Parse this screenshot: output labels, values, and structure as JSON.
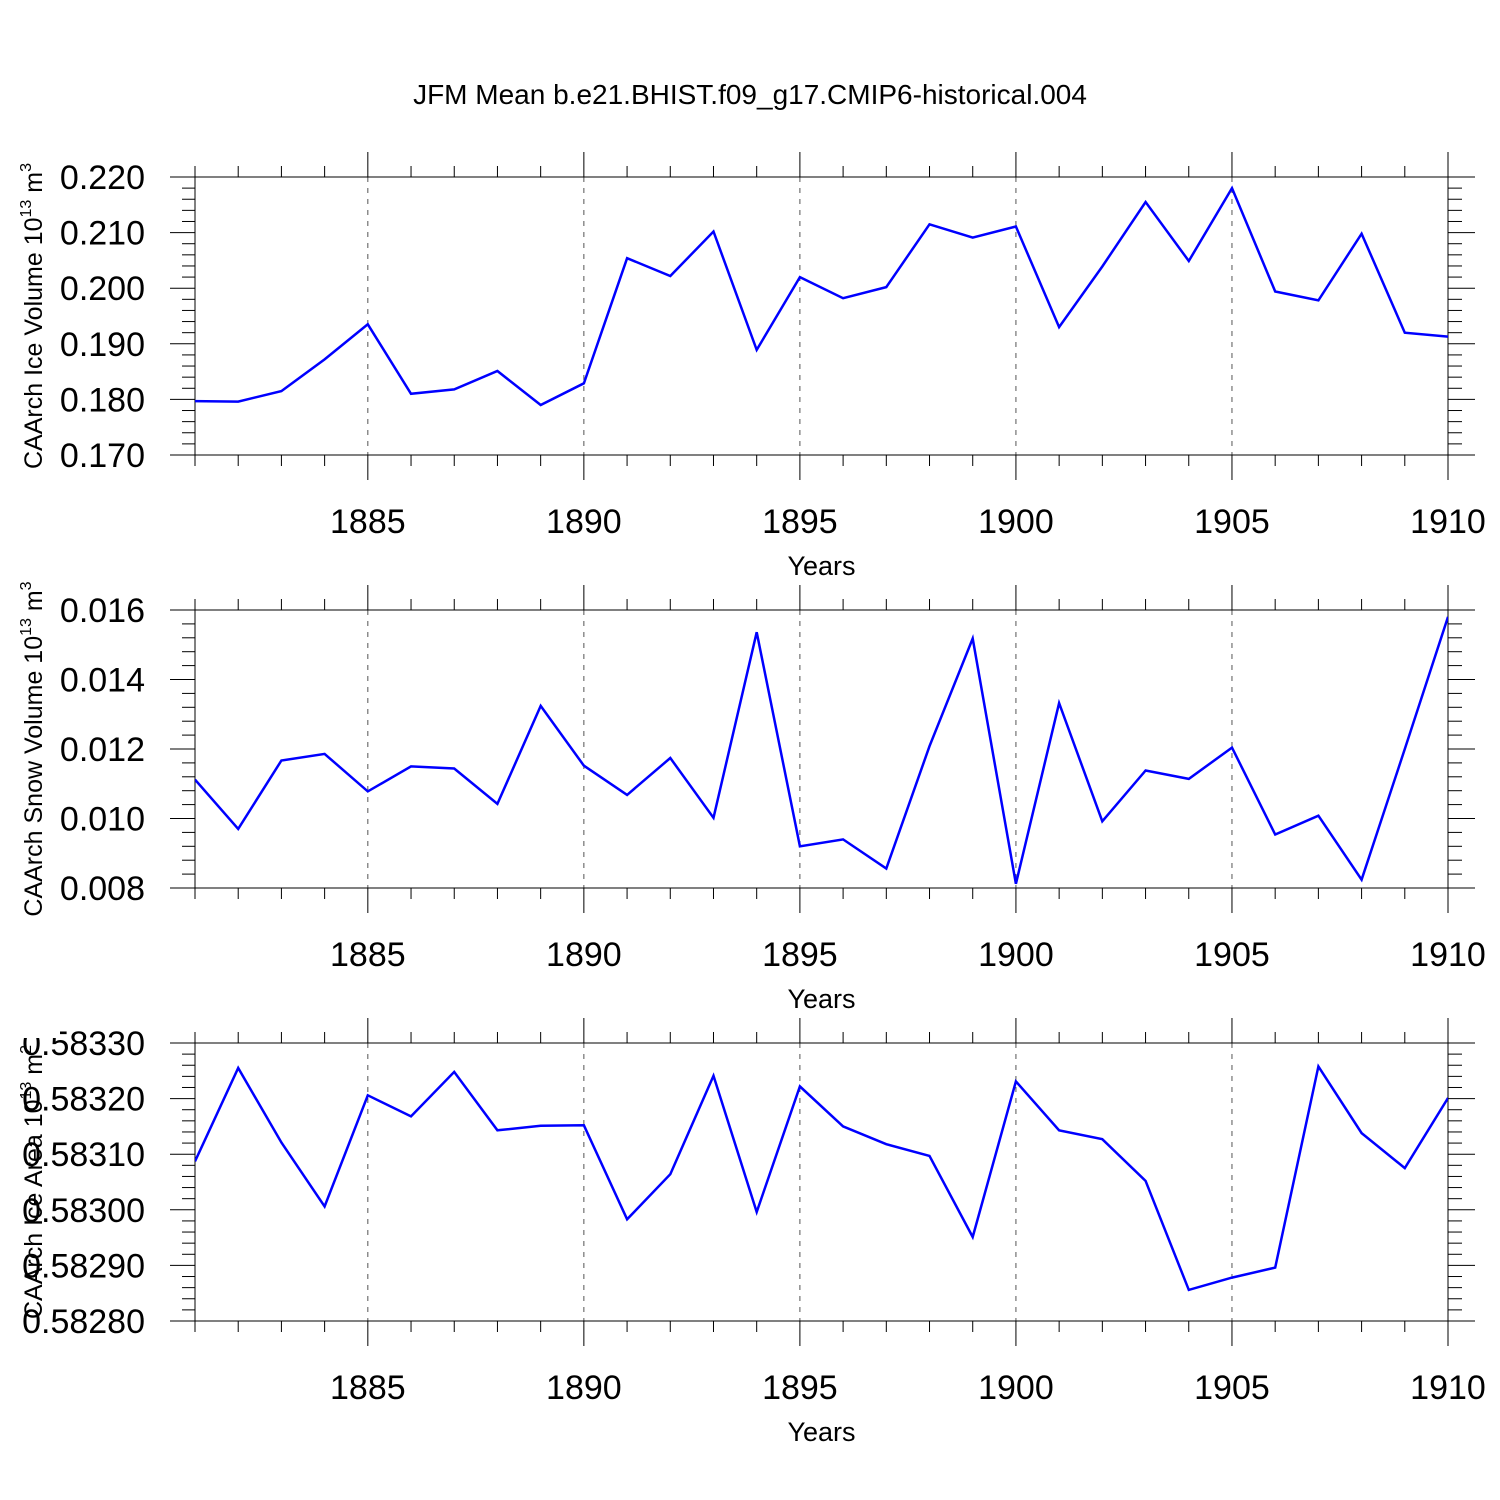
{
  "chart_data": {
    "title": "JFM Mean b.e21.BHIST.f09_g17.CMIP6-historical.004",
    "type": "line",
    "line_color": "#0000ff",
    "grid": "vertical-dashed",
    "x": [
      1881,
      1882,
      1883,
      1884,
      1885,
      1886,
      1887,
      1888,
      1889,
      1890,
      1891,
      1892,
      1893,
      1894,
      1895,
      1896,
      1897,
      1898,
      1899,
      1900,
      1901,
      1902,
      1903,
      1904,
      1905,
      1906,
      1907,
      1908,
      1909,
      1910
    ],
    "xlim": [
      1881,
      1910
    ],
    "xticks": [
      1885,
      1890,
      1895,
      1900,
      1905,
      1910
    ],
    "panels": [
      {
        "type": "line",
        "xlabel": "Years",
        "ylabel": {
          "prefix": "CAArch Ice Volume 10",
          "exp1": "13",
          "mid": " m",
          "exp2": "3"
        },
        "ylim": [
          0.17,
          0.22
        ],
        "yticks": [
          "0.170",
          "0.180",
          "0.190",
          "0.200",
          "0.210",
          "0.220"
        ],
        "values": [
          0.1797,
          0.1796,
          0.1815,
          0.1872,
          0.1935,
          0.181,
          0.1818,
          0.1851,
          0.179,
          0.1829,
          0.2054,
          0.2022,
          0.2102,
          0.1889,
          0.202,
          0.1982,
          0.2002,
          0.2115,
          0.2091,
          0.2111,
          0.193,
          0.2039,
          0.2155,
          0.2049,
          0.218,
          0.1994,
          0.1978,
          0.2098,
          0.192,
          0.1913
        ]
      },
      {
        "type": "line",
        "xlabel": "Years",
        "ylabel": {
          "prefix": "CAArch Snow Volume 10",
          "exp1": "13",
          "mid": " m",
          "exp2": "3"
        },
        "ylim": [
          0.008,
          0.016
        ],
        "yticks": [
          "0.008",
          "0.010",
          "0.012",
          "0.014",
          "0.016"
        ],
        "values": [
          0.01112,
          0.0097,
          0.01167,
          0.01186,
          0.01078,
          0.0115,
          0.01144,
          0.01042,
          0.01324,
          0.01152,
          0.01068,
          0.01174,
          0.01002,
          0.01536,
          0.0092,
          0.0094,
          0.00856,
          0.01208,
          0.01518,
          0.00812,
          0.01332,
          0.00992,
          0.01138,
          0.01114,
          0.01204,
          0.00954,
          0.01008,
          0.00824,
          0.012,
          0.0158
        ]
      },
      {
        "type": "line",
        "xlabel": "Years",
        "ylabel": {
          "prefix": "CAArch Ice Area 10",
          "exp1": "13",
          "mid": " m",
          "exp2": "2"
        },
        "ylim": [
          0.5828,
          0.5833
        ],
        "yticks": [
          "0.58280",
          "0.58290",
          "0.58300",
          "0.58310",
          "0.58320",
          "0.58330"
        ],
        "values": [
          0.583087,
          0.583255,
          0.583121,
          0.583006,
          0.583206,
          0.583168,
          0.583248,
          0.583143,
          0.583151,
          0.583152,
          0.582983,
          0.583064,
          0.583241,
          0.582996,
          0.583222,
          0.58315,
          0.583118,
          0.583097,
          0.582951,
          0.583231,
          0.583143,
          0.583127,
          0.583052,
          0.582856,
          0.582878,
          0.582896,
          0.583258,
          0.583138,
          0.583075,
          0.583201
        ]
      }
    ]
  }
}
